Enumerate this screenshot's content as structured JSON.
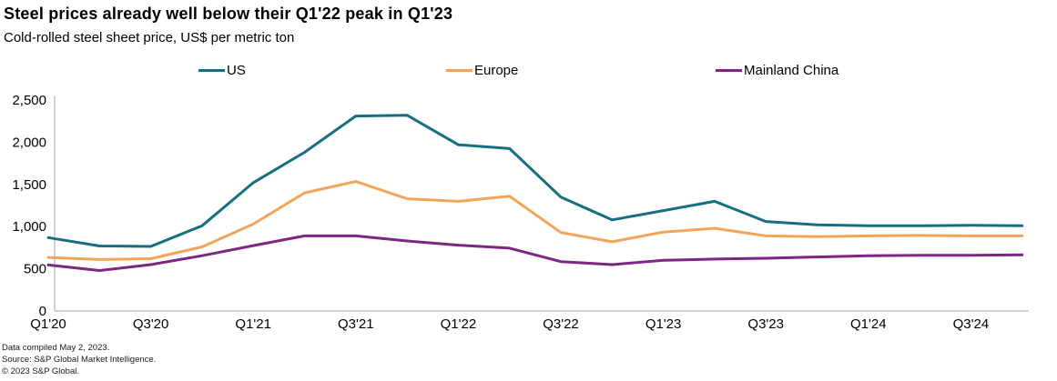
{
  "header": {
    "title": "Steel prices already well below their Q1'22 peak in Q1'23",
    "subtitle": "Cold-rolled steel sheet price, US$ per metric ton"
  },
  "chart_data": {
    "type": "line",
    "title": "Steel prices already well below their Q1'22 peak in Q1'23",
    "subtitle": "Cold-rolled steel sheet price, US$ per metric ton",
    "xlabel": "",
    "ylabel": "US$ per metric ton",
    "x": [
      "Q1'20",
      "Q2'20",
      "Q3'20",
      "Q4'20",
      "Q1'21",
      "Q2'21",
      "Q3'21",
      "Q4'21",
      "Q1'22",
      "Q2'22",
      "Q3'22",
      "Q4'22",
      "Q1'23",
      "Q2'23",
      "Q3'23",
      "Q4'23",
      "Q1'24",
      "Q2'24",
      "Q3'24",
      "Q4'24"
    ],
    "x_tick_labels_shown": [
      "Q1'20",
      "Q3'20",
      "Q1'21",
      "Q3'21",
      "Q1'22",
      "Q3'22",
      "Q1'23",
      "Q3'23",
      "Q1'24",
      "Q3'24"
    ],
    "series": [
      {
        "name": "US",
        "color": "#166f80",
        "values": [
          870,
          770,
          765,
          1010,
          1520,
          1880,
          2310,
          2320,
          1970,
          1925,
          1350,
          1080,
          1190,
          1300,
          1060,
          1020,
          1010,
          1010,
          1015,
          1010
        ]
      },
      {
        "name": "Europe",
        "color": "#f2a45a",
        "values": [
          635,
          610,
          620,
          760,
          1030,
          1400,
          1535,
          1330,
          1300,
          1360,
          930,
          820,
          935,
          980,
          890,
          880,
          890,
          895,
          890,
          890
        ]
      },
      {
        "name": "Mainland China",
        "color": "#7d2682",
        "values": [
          545,
          480,
          550,
          655,
          775,
          890,
          890,
          830,
          780,
          745,
          585,
          550,
          600,
          615,
          625,
          640,
          655,
          660,
          660,
          665
        ]
      }
    ],
    "ylim": [
      0,
      2500
    ],
    "yticks": [
      0,
      500,
      1000,
      1500,
      2000,
      2500
    ],
    "ytick_labels": [
      "0",
      "500",
      "1,000",
      "1,500",
      "2,000",
      "2,500"
    ],
    "grid": false,
    "legend_position": "top",
    "axis_color": "#a6a6a6"
  },
  "footer": {
    "line1": "Data compiled May 2, 2023.",
    "line2": "Source: S&P Global Market Intelligence.",
    "line3": "© 2023 S&P Global."
  }
}
